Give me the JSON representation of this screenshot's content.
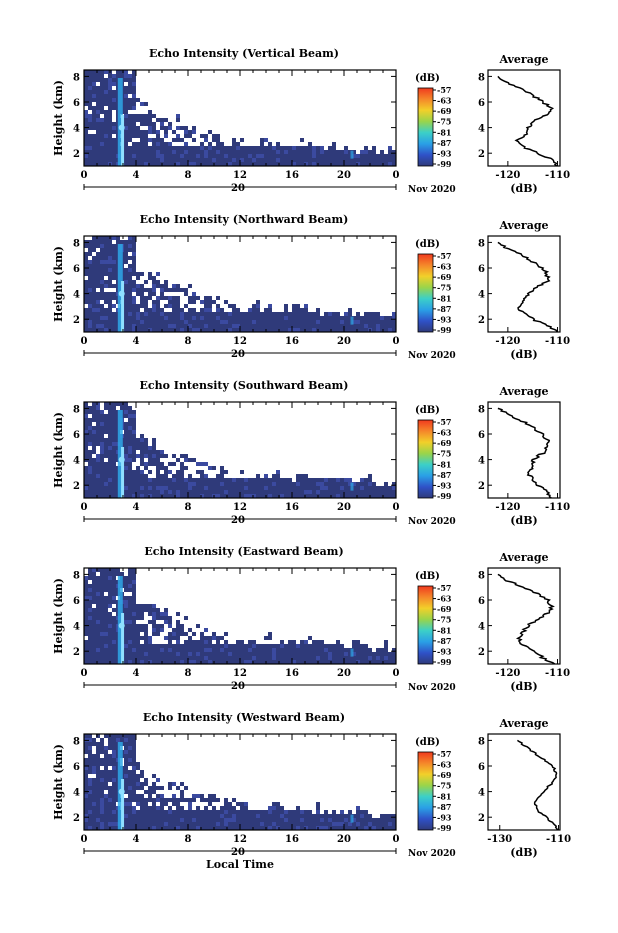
{
  "chart_data": [
    {
      "type": "heatmap",
      "title": "Echo Intensity (Vertical Beam)",
      "ylabel": "Height (km)",
      "x_ticks": [
        "0",
        "4",
        "8",
        "12",
        "16",
        "20",
        "0"
      ],
      "y_ticks": [
        "2",
        "4",
        "6",
        "8"
      ],
      "date_label": "20",
      "month_label": "Nov 2020",
      "colorbar": {
        "unit": "(dB)",
        "ticks": [
          "-57",
          "-63",
          "-69",
          "-75",
          "-81",
          "-87",
          "-93",
          "-99"
        ]
      },
      "profile": {
        "title": "Average",
        "x_ticks": [
          "-120",
          "-110"
        ],
        "xlabel": "(dB)",
        "y_ticks": [
          "2",
          "4",
          "6",
          "8"
        ],
        "heights": [
          1,
          1.5,
          2,
          2.5,
          3,
          3.5,
          4,
          4.5,
          5,
          5.5,
          6,
          6.5,
          7,
          7.5,
          8
        ],
        "values": [
          -110,
          -111,
          -114,
          -117,
          -118,
          -116,
          -116,
          -115,
          -112,
          -111,
          -113,
          -115,
          -117,
          -120,
          -122
        ]
      }
    },
    {
      "type": "heatmap",
      "title": "Echo Intensity (Northward Beam)",
      "ylabel": "Height (km)",
      "x_ticks": [
        "0",
        "4",
        "8",
        "12",
        "16",
        "20",
        "0"
      ],
      "y_ticks": [
        "2",
        "4",
        "6",
        "8"
      ],
      "date_label": "20",
      "month_label": "Nov 2020",
      "colorbar": {
        "unit": "(dB)",
        "ticks": [
          "-57",
          "-63",
          "-69",
          "-75",
          "-81",
          "-87",
          "-93",
          "-99"
        ]
      },
      "profile": {
        "title": "Average",
        "x_ticks": [
          "-120",
          "-110"
        ],
        "xlabel": "(dB)",
        "y_ticks": [
          "2",
          "4",
          "6",
          "8"
        ],
        "heights": [
          1,
          1.5,
          2,
          2.5,
          3,
          3.5,
          4,
          4.5,
          5,
          5.5,
          6,
          6.5,
          7,
          7.5,
          8
        ],
        "values": [
          -110,
          -112,
          -115,
          -117,
          -118,
          -117,
          -116,
          -114,
          -112,
          -112,
          -113,
          -115,
          -117,
          -120,
          -122
        ]
      }
    },
    {
      "type": "heatmap",
      "title": "Echo Intensity (Southward Beam)",
      "ylabel": "Height (km)",
      "x_ticks": [
        "0",
        "4",
        "8",
        "12",
        "16",
        "20",
        "0"
      ],
      "y_ticks": [
        "2",
        "4",
        "6",
        "8"
      ],
      "date_label": "20",
      "month_label": "Nov 2020",
      "colorbar": {
        "unit": "(dB)",
        "ticks": [
          "-57",
          "-63",
          "-69",
          "-75",
          "-81",
          "-87",
          "-93",
          "-99"
        ]
      },
      "profile": {
        "title": "Average",
        "x_ticks": [
          "-120",
          "-110"
        ],
        "xlabel": "(dB)",
        "y_ticks": [
          "2",
          "4",
          "6",
          "8"
        ],
        "heights": [
          1,
          1.5,
          2,
          2.5,
          3,
          3.5,
          4,
          4.5,
          5,
          5.5,
          6,
          6.5,
          7,
          7.5,
          8
        ],
        "values": [
          -111,
          -112,
          -114,
          -115,
          -116,
          -115,
          -115,
          -113,
          -112,
          -112,
          -113,
          -115,
          -117,
          -120,
          -122
        ]
      }
    },
    {
      "type": "heatmap",
      "title": "Echo Intensity (Eastward Beam)",
      "ylabel": "Height (km)",
      "x_ticks": [
        "0",
        "4",
        "8",
        "12",
        "16",
        "20",
        "0"
      ],
      "y_ticks": [
        "2",
        "4",
        "6",
        "8"
      ],
      "date_label": "20",
      "month_label": "Nov 2020",
      "colorbar": {
        "unit": "(dB)",
        "ticks": [
          "-57",
          "-63",
          "-69",
          "-75",
          "-81",
          "-87",
          "-93",
          "-99"
        ]
      },
      "profile": {
        "title": "Average",
        "x_ticks": [
          "-120",
          "-110"
        ],
        "xlabel": "(dB)",
        "y_ticks": [
          "2",
          "4",
          "6",
          "8"
        ],
        "heights": [
          1,
          1.5,
          2,
          2.5,
          3,
          3.5,
          4,
          4.5,
          5,
          5.5,
          6,
          6.5,
          7,
          7.5,
          8
        ],
        "values": [
          -111,
          -113,
          -115,
          -117,
          -118,
          -117,
          -116,
          -114,
          -112,
          -111,
          -112,
          -114,
          -117,
          -120,
          -122
        ]
      }
    },
    {
      "type": "heatmap",
      "title": "Echo Intensity (Westward Beam)",
      "ylabel": "Height (km)",
      "xlabel": "Local Time",
      "x_ticks": [
        "0",
        "4",
        "8",
        "12",
        "16",
        "20",
        "0"
      ],
      "y_ticks": [
        "2",
        "4",
        "6",
        "8"
      ],
      "date_label": "20",
      "month_label": "Nov 2020",
      "colorbar": {
        "unit": "(dB)",
        "ticks": [
          "-57",
          "-63",
          "-69",
          "-75",
          "-81",
          "-87",
          "-93",
          "-99"
        ]
      },
      "profile": {
        "title": "Average",
        "x_ticks": [
          "-130",
          "-110"
        ],
        "xlabel": "(dB)",
        "y_ticks": [
          "2",
          "4",
          "6",
          "8"
        ],
        "heights": [
          1,
          1.5,
          2,
          2.5,
          3,
          3.5,
          4,
          4.5,
          5,
          5.5,
          6,
          6.5,
          7,
          7.5,
          8
        ],
        "values": [
          -110,
          -112,
          -114,
          -117,
          -118,
          -117,
          -115,
          -113,
          -111,
          -111,
          -112,
          -115,
          -118,
          -121,
          -124
        ]
      }
    }
  ],
  "colors": {
    "echo_fill": "#2f3a7a",
    "echo_fill_2": "#3b4aa0",
    "strong_echo": "#2ea8e8",
    "strong_echo_core": "#8fe0ff",
    "colorbar_stops": [
      "#f03a1e",
      "#f5872a",
      "#f2d02a",
      "#9ad44a",
      "#3cd0c8",
      "#2aa0e6",
      "#2f52c8",
      "#2f3a7a"
    ]
  }
}
